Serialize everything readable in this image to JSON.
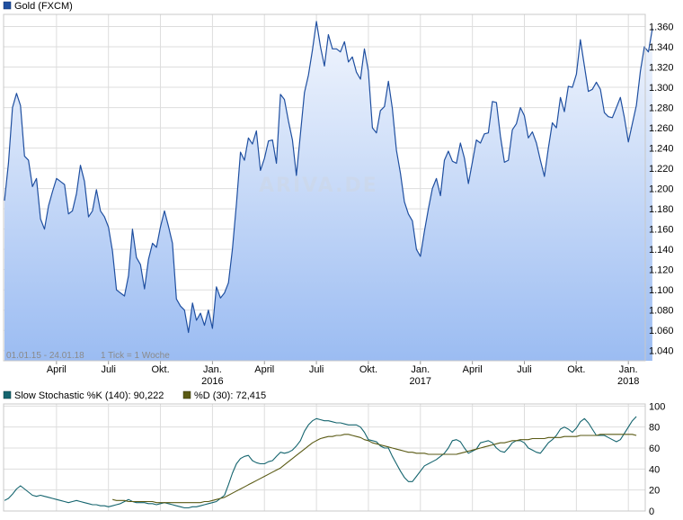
{
  "chart_data": [
    {
      "type": "area",
      "title": "Gold (FXCM)",
      "color": "#1f4fa0",
      "fill_top": "#f2f6fd",
      "fill_bottom": "#9bbcf2",
      "range_label": "01.01.15 - 24.01.18",
      "tick_label": "1 Tick = 1 Woche",
      "watermark": "ARIVA.DE",
      "grid": true,
      "ylim": [
        1030,
        1372
      ],
      "yticks": [
        "1.360",
        "1.340",
        "1.320",
        "1.300",
        "1.280",
        "1.260",
        "1.240",
        "1.220",
        "1.200",
        "1.180",
        "1.160",
        "1.140",
        "1.120",
        "1.100",
        "1.080",
        "1.060",
        "1.040"
      ],
      "ytick_values": [
        1360,
        1340,
        1320,
        1300,
        1280,
        1260,
        1240,
        1220,
        1200,
        1180,
        1160,
        1140,
        1120,
        1100,
        1080,
        1060,
        1040
      ],
      "xticks": [
        {
          "label": "April",
          "year": "",
          "pos": 13
        },
        {
          "label": "Juli",
          "year": "",
          "pos": 26
        },
        {
          "label": "Okt.",
          "year": "",
          "pos": 39
        },
        {
          "label": "Jan.",
          "year": "2016",
          "pos": 52
        },
        {
          "label": "April",
          "year": "",
          "pos": 65
        },
        {
          "label": "Juli",
          "year": "",
          "pos": 78
        },
        {
          "label": "Okt.",
          "year": "",
          "pos": 91
        },
        {
          "label": "Jan.",
          "year": "2017",
          "pos": 104
        },
        {
          "label": "April",
          "year": "",
          "pos": 117
        },
        {
          "label": "Juli",
          "year": "",
          "pos": 130
        },
        {
          "label": "Okt.",
          "year": "",
          "pos": 143
        },
        {
          "label": "Jan.",
          "year": "2018",
          "pos": 156
        }
      ],
      "x_range": [
        0,
        160
      ],
      "values": [
        1188,
        1225,
        1280,
        1294,
        1282,
        1232,
        1228,
        1202,
        1210,
        1170,
        1160,
        1183,
        1197,
        1210,
        1207,
        1204,
        1175,
        1178,
        1195,
        1223,
        1207,
        1172,
        1178,
        1199,
        1178,
        1172,
        1162,
        1138,
        1100,
        1097,
        1094,
        1114,
        1160,
        1132,
        1125,
        1101,
        1130,
        1146,
        1142,
        1162,
        1178,
        1163,
        1146,
        1091,
        1084,
        1080,
        1058,
        1087,
        1070,
        1077,
        1065,
        1080,
        1062,
        1103,
        1092,
        1097,
        1107,
        1140,
        1185,
        1236,
        1228,
        1250,
        1244,
        1257,
        1218,
        1230,
        1247,
        1248,
        1225,
        1293,
        1288,
        1267,
        1248,
        1213,
        1254,
        1295,
        1312,
        1337,
        1365,
        1340,
        1321,
        1352,
        1338,
        1338,
        1335,
        1345,
        1325,
        1330,
        1315,
        1308,
        1338,
        1316,
        1260,
        1255,
        1277,
        1281,
        1306,
        1279,
        1238,
        1215,
        1187,
        1175,
        1168,
        1140,
        1133,
        1158,
        1180,
        1200,
        1210,
        1193,
        1228,
        1237,
        1227,
        1225,
        1245,
        1230,
        1205,
        1226,
        1248,
        1245,
        1254,
        1255,
        1286,
        1285,
        1252,
        1226,
        1228,
        1258,
        1264,
        1280,
        1272,
        1250,
        1256,
        1245,
        1228,
        1212,
        1240,
        1265,
        1260,
        1290,
        1276,
        1301,
        1300,
        1313,
        1347,
        1321,
        1296,
        1298,
        1305,
        1298,
        1275,
        1271,
        1270,
        1280,
        1290,
        1270,
        1246,
        1264,
        1282,
        1316,
        1340,
        1335,
        1358
      ]
    },
    {
      "type": "line",
      "title": "Slow Stochastic",
      "ylim": [
        0,
        102
      ],
      "yticks": [
        "100",
        "80",
        "60",
        "40",
        "20",
        "0"
      ],
      "ytick_values": [
        100,
        80,
        60,
        40,
        20,
        0
      ],
      "grid": true,
      "x_range": [
        0,
        160
      ],
      "series": [
        {
          "name": "Slow Stochastic %K (140): 90,222",
          "color": "#14646e",
          "start": 0,
          "values": [
            10,
            12,
            16,
            21,
            24,
            21,
            18,
            15,
            14,
            15,
            14,
            13,
            12,
            11,
            10,
            9,
            8,
            9,
            10,
            9,
            8,
            7,
            6,
            6,
            5,
            5,
            4,
            5,
            6,
            7,
            9,
            11,
            9,
            8,
            8,
            8,
            7,
            7,
            6,
            7,
            8,
            7,
            6,
            5,
            4,
            3,
            3,
            4,
            4,
            5,
            6,
            7,
            8,
            9,
            12,
            15,
            25,
            36,
            45,
            50,
            52,
            53,
            48,
            46,
            45,
            45,
            47,
            48,
            52,
            56,
            55,
            56,
            58,
            62,
            67,
            76,
            82,
            86,
            88,
            87,
            86,
            86,
            85,
            84,
            84,
            83,
            82,
            82,
            82,
            80,
            75,
            68,
            67,
            66,
            62,
            60,
            60,
            52,
            45,
            38,
            32,
            28,
            28,
            33,
            38,
            43,
            45,
            47,
            49,
            52,
            55,
            60,
            67,
            68,
            66,
            60,
            55,
            57,
            59,
            65,
            66,
            67,
            65,
            60,
            57,
            56,
            60,
            65,
            67,
            67,
            65,
            60,
            58,
            56,
            55,
            60,
            65,
            68,
            72,
            78,
            80,
            78,
            75,
            79,
            85,
            88,
            84,
            78,
            72,
            72,
            72,
            70,
            68,
            66,
            68,
            74,
            80,
            86,
            90
          ]
        },
        {
          "name": "%D (30): 72,415",
          "color": "#5a5a14",
          "start": 27,
          "values": [
            11,
            10,
            10,
            10,
            9,
            9,
            9,
            9,
            9,
            9,
            9,
            8,
            8,
            8,
            8,
            8,
            8,
            8,
            8,
            8,
            8,
            8,
            8,
            9,
            9,
            10,
            11,
            12,
            13,
            15,
            17,
            19,
            21,
            23,
            25,
            27,
            29,
            31,
            33,
            35,
            37,
            39,
            41,
            44,
            47,
            50,
            53,
            56,
            59,
            62,
            65,
            67,
            69,
            70,
            71,
            71,
            72,
            72,
            73,
            73,
            72,
            71,
            70,
            68,
            67,
            65,
            64,
            63,
            62,
            61,
            60,
            59,
            58,
            57,
            56,
            56,
            55,
            55,
            55,
            54,
            54,
            54,
            54,
            54,
            54,
            54,
            54,
            55,
            56,
            57,
            58,
            59,
            60,
            61,
            62,
            63,
            64,
            65,
            65,
            66,
            67,
            67,
            68,
            68,
            68,
            69,
            69,
            69,
            69,
            70,
            70,
            70,
            70,
            71,
            71,
            71,
            71,
            72,
            72,
            72,
            72,
            72,
            73,
            73,
            73,
            73,
            73,
            73,
            73,
            73,
            73,
            72
          ]
        }
      ]
    }
  ]
}
